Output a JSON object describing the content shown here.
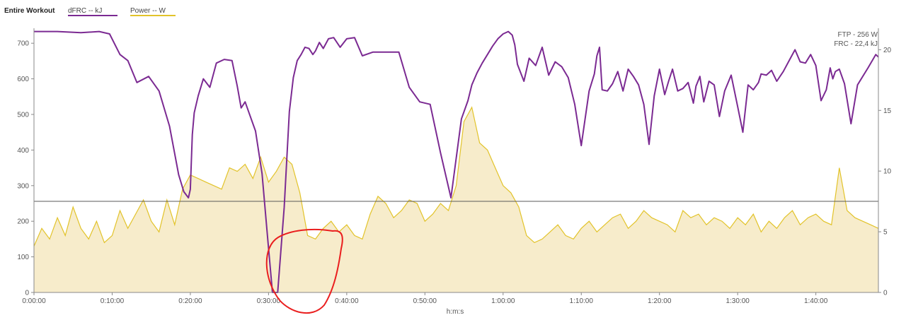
{
  "legend": {
    "title": "Entire Workout",
    "items": [
      {
        "label": "dFRC  -- kJ",
        "color": "#7b2a92"
      },
      {
        "label": "Power  -- W",
        "color": "#e2c32a"
      }
    ]
  },
  "annotations": {
    "ftp": "FTP - 256 W",
    "frc": "FRC - 22,4 kJ"
  },
  "chart_data": {
    "type": "line",
    "xlabel": "h:m:s",
    "x_ticks": [
      "0:00:00",
      "0:10:00",
      "0:20:00",
      "0:30:00",
      "0:40:00",
      "0:50:00",
      "1:00:00",
      "1:10:00",
      "1:20:00",
      "1:30:00",
      "1:40:00"
    ],
    "x_tick_seconds": [
      0,
      600,
      1200,
      1800,
      2400,
      3000,
      3600,
      4200,
      4800,
      5400,
      6000
    ],
    "xlim_seconds": [
      0,
      6480
    ],
    "y_left_ticks": [
      "0",
      "100",
      "200",
      "300",
      "400",
      "500",
      "600",
      "700"
    ],
    "y_left_lim": [
      0,
      750
    ],
    "y_right_ticks": [
      "0",
      "5",
      "10",
      "15",
      "20"
    ],
    "y_right_lim": [
      0,
      22
    ],
    "grid": false,
    "ftp_line_watts": 256,
    "series": [
      {
        "name": "dFRC  -- kJ",
        "axis": "right",
        "color": "#7b2a92",
        "x_seconds": [
          0,
          180,
          360,
          500,
          580,
          660,
          720,
          790,
          880,
          960,
          1040,
          1110,
          1150,
          1185,
          1200,
          1215,
          1230,
          1260,
          1300,
          1350,
          1400,
          1460,
          1520,
          1560,
          1590,
          1620,
          1650,
          1700,
          1750,
          1790,
          1830,
          1870,
          1920,
          1960,
          1990,
          2020,
          2050,
          2080,
          2110,
          2140,
          2160,
          2190,
          2220,
          2260,
          2300,
          2350,
          2400,
          2460,
          2520,
          2600,
          2700,
          2800,
          2880,
          2960,
          3040,
          3120,
          3200,
          3280,
          3330,
          3360,
          3400,
          3440,
          3480,
          3520,
          3560,
          3600,
          3640,
          3670,
          3690,
          3710,
          3760,
          3800,
          3850,
          3900,
          3950,
          4000,
          4050,
          4100,
          4150,
          4200,
          4260,
          4300,
          4320,
          4340,
          4360,
          4400,
          4440,
          4480,
          4520,
          4560,
          4600,
          4640,
          4680,
          4720,
          4760,
          4800,
          4840,
          4870,
          4900,
          4940,
          4980,
          5020,
          5060,
          5080,
          5110,
          5140,
          5180,
          5220,
          5260,
          5300,
          5350,
          5400,
          5440,
          5480,
          5520,
          5560,
          5580,
          5620,
          5660,
          5700,
          5750,
          5800,
          5840,
          5880,
          5920,
          5960,
          6000,
          6040,
          6080,
          6110,
          6130,
          6150,
          6180,
          6220,
          6270,
          6320,
          6400,
          6460,
          6480
        ],
        "values": [
          21.5,
          21.5,
          21.4,
          21.5,
          21.3,
          19.6,
          19.1,
          17.3,
          17.8,
          16.6,
          13.7,
          9.7,
          8.3,
          7.8,
          8.5,
          13.0,
          14.8,
          16.2,
          17.6,
          16.9,
          18.9,
          19.2,
          19.1,
          17.0,
          15.2,
          15.7,
          14.8,
          13.3,
          9.8,
          4.9,
          0.0,
          0.0,
          7.0,
          14.9,
          17.7,
          19.1,
          19.6,
          20.2,
          20.1,
          19.6,
          19.9,
          20.6,
          20.1,
          20.9,
          21.0,
          20.2,
          20.9,
          21.0,
          19.5,
          19.8,
          19.8,
          19.8,
          16.9,
          15.7,
          15.5,
          11.5,
          7.8,
          14.3,
          15.8,
          17.1,
          18.1,
          18.9,
          19.6,
          20.3,
          20.9,
          21.3,
          21.5,
          21.2,
          20.4,
          18.8,
          17.4,
          19.3,
          18.7,
          20.2,
          17.9,
          19.0,
          18.6,
          17.7,
          15.5,
          12.1,
          16.6,
          18.0,
          19.5,
          20.2,
          16.7,
          16.6,
          17.2,
          18.2,
          16.6,
          18.4,
          17.8,
          17.1,
          15.5,
          12.2,
          16.2,
          18.4,
          16.3,
          17.4,
          18.4,
          16.6,
          16.8,
          17.3,
          15.6,
          17.0,
          17.8,
          15.7,
          17.4,
          17.1,
          14.5,
          16.6,
          17.9,
          15.3,
          13.2,
          17.1,
          16.7,
          17.3,
          18.0,
          17.9,
          18.3,
          17.4,
          18.2,
          19.2,
          20.0,
          19.0,
          18.9,
          19.6,
          18.7,
          15.8,
          16.7,
          18.5,
          17.6,
          18.2,
          18.4,
          17.2,
          13.9,
          17.1,
          18.5,
          19.6,
          19.4
        ]
      },
      {
        "name": "Power  -- W",
        "axis": "left",
        "color": "#e2c32a",
        "fill": "#f7eccb",
        "x_seconds": [
          0,
          60,
          120,
          180,
          240,
          300,
          360,
          420,
          480,
          540,
          600,
          660,
          720,
          780,
          840,
          900,
          960,
          1020,
          1080,
          1140,
          1200,
          1260,
          1320,
          1380,
          1440,
          1500,
          1560,
          1620,
          1680,
          1740,
          1800,
          1860,
          1920,
          1980,
          2040,
          2100,
          2160,
          2220,
          2280,
          2340,
          2400,
          2460,
          2520,
          2580,
          2640,
          2700,
          2760,
          2820,
          2880,
          2940,
          3000,
          3060,
          3120,
          3180,
          3240,
          3300,
          3360,
          3420,
          3480,
          3540,
          3600,
          3660,
          3720,
          3780,
          3840,
          3900,
          3960,
          4020,
          4080,
          4140,
          4200,
          4260,
          4320,
          4380,
          4440,
          4500,
          4560,
          4620,
          4680,
          4740,
          4800,
          4860,
          4920,
          4980,
          5040,
          5100,
          5160,
          5220,
          5280,
          5340,
          5400,
          5460,
          5520,
          5580,
          5640,
          5700,
          5760,
          5820,
          5880,
          5940,
          6000,
          6060,
          6120,
          6180,
          6240,
          6300,
          6360,
          6420,
          6480
        ],
        "values": [
          130,
          180,
          150,
          210,
          160,
          240,
          180,
          150,
          200,
          140,
          160,
          230,
          180,
          220,
          260,
          200,
          170,
          260,
          190,
          290,
          330,
          320,
          310,
          300,
          290,
          350,
          340,
          360,
          320,
          380,
          310,
          340,
          380,
          360,
          280,
          160,
          150,
          180,
          200,
          170,
          190,
          160,
          150,
          220,
          270,
          250,
          210,
          230,
          260,
          250,
          200,
          220,
          250,
          230,
          300,
          480,
          520,
          420,
          400,
          350,
          300,
          280,
          240,
          160,
          140,
          150,
          170,
          190,
          160,
          150,
          180,
          200,
          170,
          190,
          210,
          220,
          180,
          200,
          230,
          210,
          200,
          190,
          170,
          230,
          210,
          220,
          190,
          210,
          200,
          180,
          210,
          190,
          220,
          170,
          200,
          180,
          210,
          230,
          190,
          210,
          220,
          200,
          190,
          350,
          230,
          210,
          200,
          190,
          180
        ]
      }
    ]
  }
}
